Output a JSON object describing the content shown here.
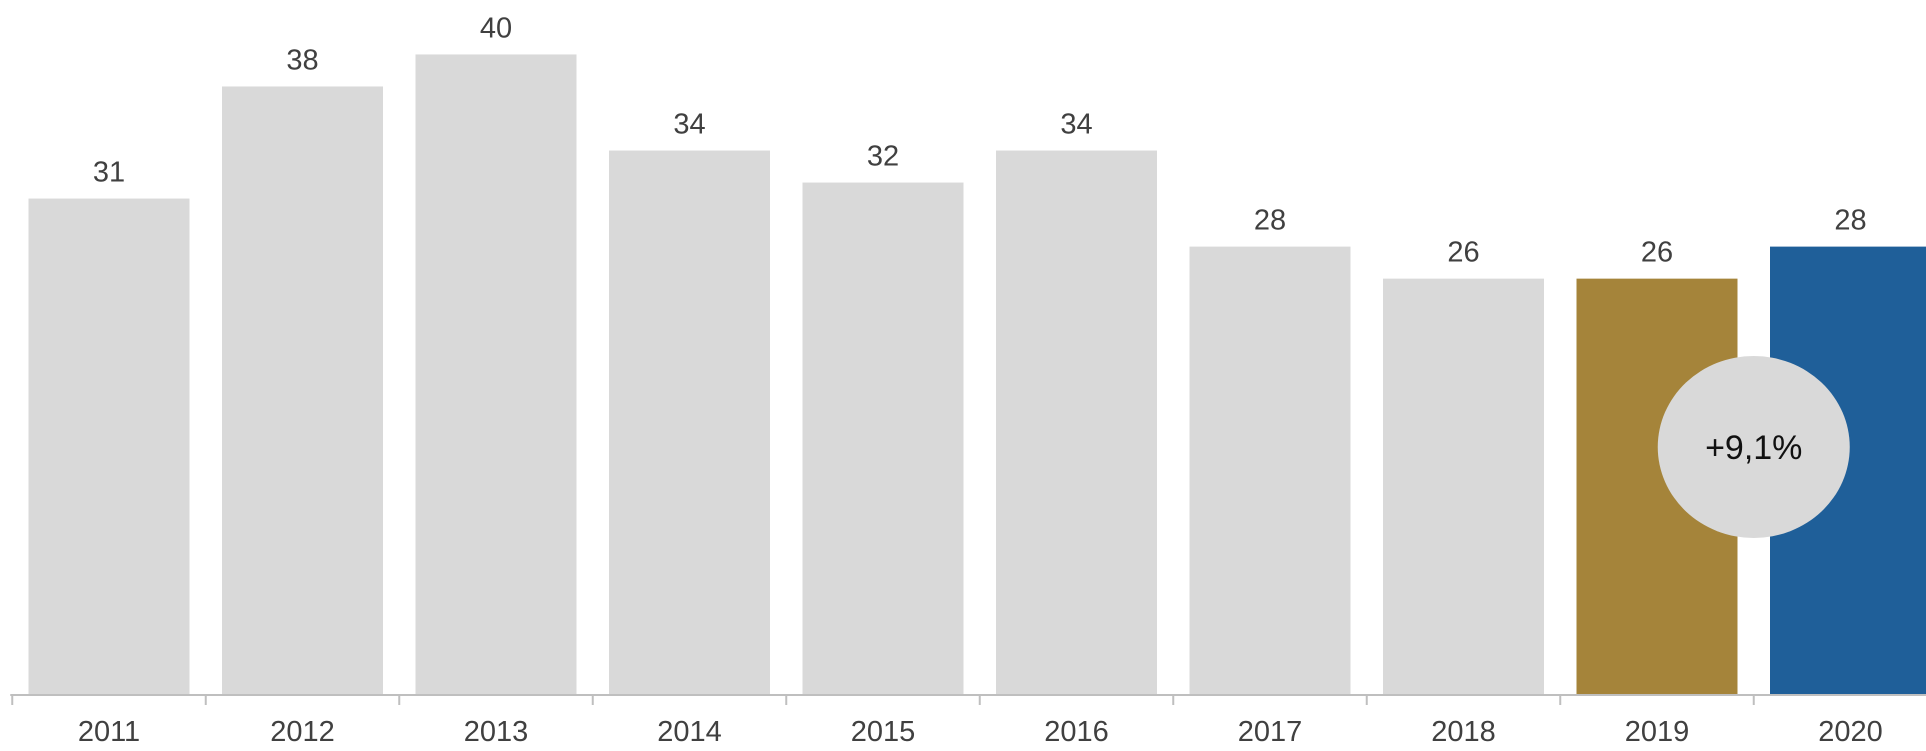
{
  "chart_data": {
    "type": "bar",
    "categories": [
      "2011",
      "2012",
      "2013",
      "2014",
      "2015",
      "2016",
      "2017",
      "2018",
      "2019",
      "2020"
    ],
    "values": [
      31,
      38,
      40,
      34,
      32,
      34,
      28,
      26,
      26,
      28
    ],
    "value_labels": [
      "31",
      "38",
      "40",
      "34",
      "32",
      "34",
      "28",
      "26",
      "26",
      "28"
    ],
    "ylim": [
      0,
      43.4
    ],
    "grid": false,
    "legend": "none",
    "colors": {
      "default_bar": "#d9d9d9",
      "highlight_previous": "#a5843a",
      "highlight_current": "#1f5f99",
      "axis": "#bfbfbf",
      "badge_fill": "#d9d9d9"
    },
    "highlight": {
      "2019": "highlight_previous",
      "2020": "highlight_current"
    },
    "annotation": {
      "text": "+9,1%",
      "between": [
        "2019",
        "2020"
      ]
    }
  }
}
